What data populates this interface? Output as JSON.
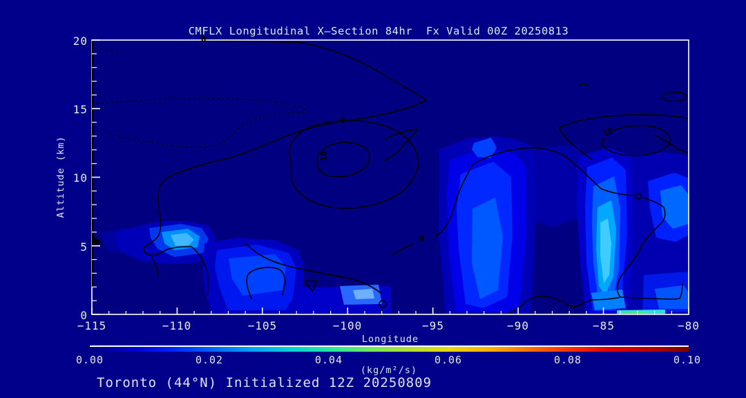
{
  "title": {
    "text": "CMFLX Longitudinal X—Section 84hr  Fx Valid 00Z 20250813"
  },
  "annotation": {
    "text": "Toronto (44°N) Initialized 12Z 20250809"
  },
  "y_axis": {
    "label": "Altitude (km)",
    "ticks": [
      "20",
      "15",
      "10",
      "5",
      "0"
    ]
  },
  "x_axis": {
    "label": "Longitude",
    "ticks": [
      "−115",
      "−110",
      "−105",
      "−100",
      "−95",
      "−90",
      "−85",
      "−80"
    ]
  },
  "colorbar": {
    "ticks": [
      "0.00",
      "0.02",
      "0.04",
      "0.06",
      "0.08",
      "0.10"
    ],
    "units_label": "(kg/m²/s)",
    "gradient": [
      "#000080",
      "#0000C8",
      "#0020FF",
      "#0060FF",
      "#00A0FF",
      "#00D0D8",
      "#20E8A0",
      "#70E860",
      "#B0E030",
      "#E8D810",
      "#FFB000",
      "#FF7000",
      "#FF3000",
      "#E00000",
      "#B80000",
      "#780000"
    ]
  },
  "contour_labels": [
    "0",
    "0",
    "0",
    "10",
    "10"
  ],
  "colors": {
    "page_background": "#00008B",
    "plot_background": "#000080",
    "border": "#FFFFFF",
    "contour_line": "#000000",
    "tick_text": "#ECECEC",
    "title_text": "#CFEFEF"
  },
  "chart_data": {
    "type": "heatmap",
    "subtype": "filled-contour longitude-height cross-section with overlaid line contours",
    "title": "CMFLX Longitudinal X—Section 84hr  Fx Valid 00Z 20250813",
    "xlabel": "Longitude",
    "ylabel": "Altitude (km)",
    "xlim": [
      -115,
      -80
    ],
    "ylim": [
      0,
      20
    ],
    "x_tick_step": 5,
    "x_minor_step": 1,
    "y_tick_step": 5,
    "y_minor_step": 1,
    "grid": false,
    "legend_position": "horizontal colorbar below plot",
    "colorbar_scale": {
      "min": 0.0,
      "max": 0.1,
      "tick_step": 0.02,
      "units": "kg/m²/s"
    },
    "line_contours": {
      "solid_labeled_levels": [
        0,
        10
      ],
      "dashed_contours": "negative levels, upper-left region near 13–15.5 km between lon −115 and −102"
    },
    "shaded_flux_maxima": [
      {
        "lon": -110.6,
        "alt_km": 5.2,
        "approx_value": 0.03
      },
      {
        "lon": -106.6,
        "alt_km": 2.8,
        "approx_value": 0.018
      },
      {
        "lon": -100.4,
        "alt_km": 1.1,
        "approx_value": 0.022
      },
      {
        "lon": -92.4,
        "alt_km": 5.5,
        "approx_value": 0.02
      },
      {
        "lon": -92.6,
        "alt_km": 11.5,
        "approx_value": 0.015
      },
      {
        "lon": -84.9,
        "alt_km": 4.5,
        "approx_value": 0.035
      },
      {
        "lon": -84.6,
        "alt_km": 0.3,
        "approx_value": 0.045
      },
      {
        "lon": -81.2,
        "alt_km": 8.3,
        "approx_value": 0.025
      },
      {
        "lon": -80.8,
        "alt_km": 0.8,
        "approx_value": 0.022
      }
    ],
    "station": "Toronto (44°N)",
    "forecast_hour": "84hr",
    "valid": "00Z 20250813",
    "initialized": "12Z 20250809"
  }
}
